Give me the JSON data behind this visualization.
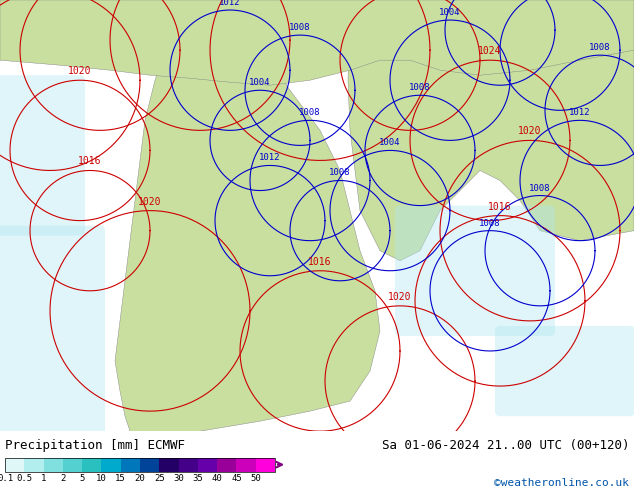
{
  "title_left": "Precipitation [mm] ECMWF",
  "title_right": "Sa 01-06-2024 21..00 UTC (00+120)",
  "credit": "©weatheronline.co.uk",
  "colorbar_labels": [
    "0.1",
    "0.5",
    "1",
    "2",
    "5",
    "10",
    "15",
    "20",
    "25",
    "30",
    "35",
    "40",
    "45",
    "50"
  ],
  "colorbar_colors": [
    "#e0f7f7",
    "#b2eeee",
    "#80dfdf",
    "#55d0d0",
    "#2ac0c0",
    "#00aacc",
    "#0077bb",
    "#004499",
    "#220066",
    "#440088",
    "#6600aa",
    "#990099",
    "#cc00bb",
    "#ff00dd"
  ],
  "background_color": "#ffffff",
  "map_bg_color": "#d0e8f0",
  "land_color": "#c8dfa0",
  "precip_light_color": "#b0e8f0",
  "contour_color_blue": "#0000cc",
  "contour_color_red": "#cc0000",
  "figsize": [
    6.34,
    4.9
  ],
  "dpi": 100
}
